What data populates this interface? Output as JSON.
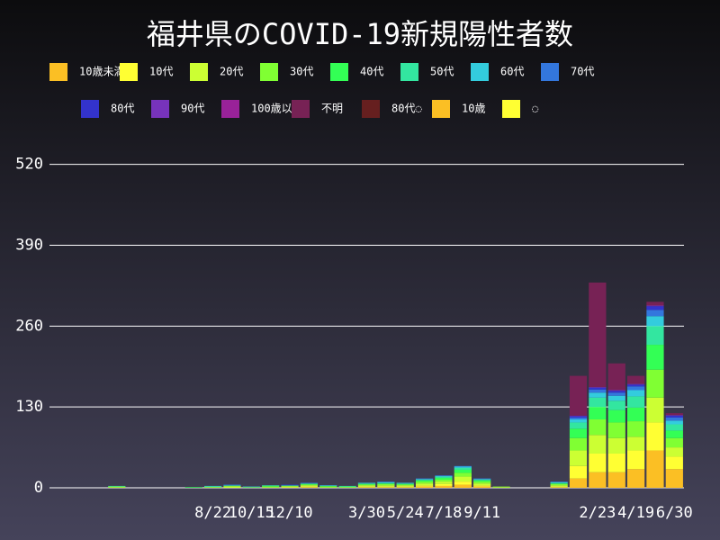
{
  "chart_data": {
    "type": "stacked_bar",
    "title": "福井県のCOVID-19新規陽性者数",
    "categories": [
      null,
      null,
      null,
      null,
      null,
      null,
      null,
      null,
      "8/22",
      null,
      "10/15",
      null,
      "12/10",
      null,
      null,
      null,
      "3/30",
      null,
      "5/24",
      null,
      "7/18",
      null,
      "9/11",
      null,
      null,
      null,
      null,
      null,
      "2/23",
      null,
      "4/19",
      null,
      "6/30"
    ],
    "ylim": [
      0,
      560
    ],
    "yticks": [
      0,
      130,
      260,
      390,
      520
    ],
    "grid": true,
    "series": [
      {
        "name": "10歳未満",
        "color": "#fbbf24",
        "values": [
          0,
          0,
          0,
          0,
          0,
          0,
          0,
          0,
          0,
          0,
          0,
          0,
          0,
          1,
          0,
          0,
          1,
          1,
          1,
          2,
          3,
          5,
          2,
          0,
          0,
          0,
          1,
          15,
          25,
          25,
          30,
          60,
          30
        ]
      },
      {
        "name": "10代",
        "color": "#ffff33",
        "values": [
          0,
          0,
          0,
          0,
          0,
          0,
          0,
          0,
          0,
          0,
          0,
          0,
          1,
          1,
          0,
          0,
          1,
          1,
          1,
          2,
          3,
          5,
          2,
          0,
          0,
          0,
          1,
          20,
          30,
          30,
          30,
          45,
          20
        ]
      },
      {
        "name": "20代",
        "color": "#ccff33",
        "values": [
          0,
          0,
          0,
          1,
          0,
          0,
          0,
          0,
          1,
          2,
          0,
          1,
          1,
          2,
          1,
          1,
          2,
          2,
          2,
          3,
          4,
          8,
          3,
          1,
          0,
          0,
          2,
          25,
          30,
          25,
          22,
          40,
          15
        ]
      },
      {
        "name": "30代",
        "color": "#80ff33",
        "values": [
          0,
          0,
          0,
          1,
          0,
          0,
          0,
          0,
          0,
          1,
          1,
          1,
          1,
          1,
          1,
          0,
          1,
          2,
          1,
          3,
          3,
          6,
          3,
          1,
          0,
          0,
          2,
          20,
          25,
          25,
          25,
          45,
          15
        ]
      },
      {
        "name": "40代",
        "color": "#33ff55",
        "values": [
          0,
          0,
          0,
          0,
          0,
          0,
          0,
          1,
          1,
          0,
          0,
          1,
          0,
          1,
          1,
          1,
          1,
          1,
          1,
          2,
          3,
          5,
          2,
          0,
          0,
          0,
          1,
          15,
          20,
          20,
          22,
          40,
          12
        ]
      },
      {
        "name": "50代",
        "color": "#33e6a0",
        "values": [
          0,
          0,
          0,
          1,
          0,
          0,
          0,
          0,
          0,
          1,
          0,
          1,
          1,
          1,
          0,
          1,
          1,
          1,
          1,
          1,
          2,
          3,
          1,
          0,
          0,
          0,
          1,
          10,
          15,
          15,
          18,
          30,
          10
        ]
      },
      {
        "name": "60代",
        "color": "#33ccdd",
        "values": [
          0,
          0,
          0,
          0,
          0,
          0,
          0,
          0,
          1,
          0,
          1,
          0,
          0,
          0,
          1,
          0,
          1,
          1,
          1,
          1,
          1,
          2,
          1,
          0,
          0,
          0,
          1,
          5,
          8,
          8,
          10,
          16,
          6
        ]
      },
      {
        "name": "70代",
        "color": "#3377dd",
        "values": [
          0,
          0,
          0,
          0,
          0,
          0,
          0,
          0,
          0,
          1,
          0,
          0,
          0,
          1,
          0,
          0,
          0,
          1,
          0,
          1,
          1,
          1,
          1,
          0,
          0,
          0,
          1,
          3,
          5,
          5,
          6,
          10,
          5
        ]
      },
      {
        "name": "80代",
        "color": "#3333cc",
        "values": [
          0,
          0,
          0,
          0,
          0,
          0,
          0,
          0,
          0,
          0,
          0,
          0,
          1,
          0,
          0,
          0,
          0,
          0,
          0,
          0,
          0,
          0,
          0,
          0,
          0,
          0,
          0,
          2,
          3,
          3,
          3,
          6,
          3
        ]
      },
      {
        "name": "90代",
        "color": "#7733bb",
        "values": [
          0,
          0,
          0,
          0,
          0,
          0,
          0,
          0,
          0,
          0,
          0,
          0,
          0,
          0,
          0,
          0,
          0,
          0,
          0,
          0,
          0,
          0,
          0,
          0,
          0,
          0,
          0,
          1,
          1,
          1,
          1,
          1,
          1
        ]
      },
      {
        "name": "100歳以上",
        "color": "#992299",
        "values": [
          0,
          0,
          0,
          0,
          0,
          0,
          0,
          0,
          0,
          0,
          0,
          0,
          0,
          0,
          0,
          0,
          0,
          0,
          0,
          0,
          0,
          0,
          0,
          0,
          0,
          0,
          0,
          0,
          0,
          0,
          0,
          0,
          0
        ]
      },
      {
        "name": "不明",
        "color": "#772255",
        "values": [
          0,
          0,
          0,
          0,
          0,
          0,
          0,
          0,
          0,
          0,
          0,
          0,
          0,
          0,
          0,
          0,
          0,
          0,
          0,
          0,
          0,
          0,
          0,
          0,
          0,
          0,
          0,
          64,
          168,
          43,
          13,
          6,
          3
        ]
      },
      {
        "name": "80代◌",
        "color": "#661f1f",
        "values": [
          0,
          0,
          0,
          0,
          0,
          0,
          0,
          0,
          0,
          0,
          0,
          0,
          0,
          0,
          0,
          0,
          0,
          0,
          0,
          0,
          0,
          0,
          0,
          0,
          0,
          0,
          0,
          0,
          0,
          0,
          0,
          0,
          0
        ]
      },
      {
        "name": "10歳",
        "color": "#fbbf24",
        "values": [
          0,
          0,
          0,
          0,
          0,
          0,
          0,
          0,
          0,
          0,
          0,
          0,
          0,
          0,
          0,
          0,
          0,
          0,
          0,
          0,
          0,
          0,
          0,
          0,
          0,
          0,
          0,
          0,
          0,
          0,
          0,
          0,
          0
        ]
      },
      {
        "name": "◌",
        "color": "#ffff33",
        "values": [
          0,
          0,
          0,
          0,
          0,
          0,
          0,
          0,
          0,
          0,
          0,
          0,
          0,
          0,
          0,
          0,
          0,
          0,
          0,
          0,
          0,
          0,
          0,
          0,
          0,
          0,
          0,
          0,
          0,
          0,
          0,
          0,
          0
        ]
      }
    ]
  }
}
